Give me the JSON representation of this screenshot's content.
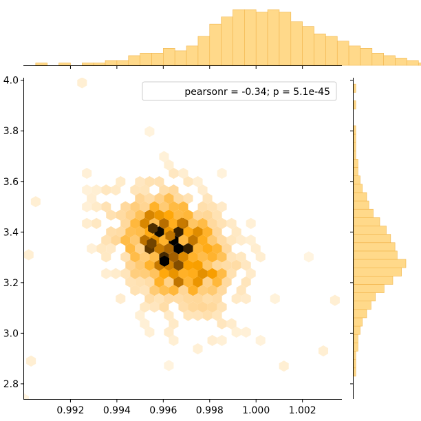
{
  "chart_data": {
    "type": "hexbin-jointplot",
    "title": "",
    "xlabel": "",
    "ylabel": "",
    "legend": {
      "text": "pearsonr = -0.34; p = 5.1e-45",
      "placement": "top-right"
    },
    "colors": {
      "hex_low": "#fff3df",
      "hex_mid": "#ffa000",
      "hex_high": "#000000",
      "hist_fill": "#ffd98a",
      "hist_edge": "#f1b44a"
    },
    "xlim": [
      0.99,
      1.0037
    ],
    "ylim": [
      2.74,
      4.01
    ],
    "x_ticks": [
      {
        "value": 0.992,
        "label": "0.992"
      },
      {
        "value": 0.994,
        "label": "0.994"
      },
      {
        "value": 0.996,
        "label": "0.996"
      },
      {
        "value": 0.998,
        "label": "0.998"
      },
      {
        "value": 1.0,
        "label": "1.000"
      },
      {
        "value": 1.002,
        "label": "1.002"
      }
    ],
    "y_ticks": [
      {
        "value": 2.8,
        "label": "2.8"
      },
      {
        "value": 3.0,
        "label": "3.0"
      },
      {
        "value": 3.2,
        "label": "3.2"
      },
      {
        "value": 3.4,
        "label": "3.4"
      },
      {
        "value": 3.6,
        "label": "3.6"
      },
      {
        "value": 3.8,
        "label": "3.8"
      },
      {
        "value": 4.0,
        "label": "4.0"
      }
    ],
    "hexbin": {
      "density_center": {
        "x": 0.99645,
        "y": 3.33
      },
      "sigma_x": 0.00165,
      "sigma_y": 0.16,
      "correlation": -0.34,
      "sparse_outliers": [
        {
          "x": 0.9925,
          "y": 3.99
        },
        {
          "x": 0.9905,
          "y": 3.52
        },
        {
          "x": 0.9902,
          "y": 3.31
        },
        {
          "x": 0.9903,
          "y": 2.89
        },
        {
          "x": 1.0029,
          "y": 2.93
        },
        {
          "x": 1.0034,
          "y": 3.13
        },
        {
          "x": 1.0012,
          "y": 2.87
        }
      ]
    },
    "x_marginal": {
      "bin_edges_start": 0.9905,
      "bin_width": 0.0005,
      "counts": [
        1,
        0,
        1,
        0,
        1,
        1,
        2,
        2,
        4,
        5,
        5,
        7,
        6,
        8,
        12,
        17,
        20,
        23,
        23,
        22,
        23,
        22,
        18,
        16,
        13,
        12,
        10,
        8,
        7,
        5,
        4,
        3,
        2,
        1,
        1,
        1
      ]
    },
    "y_marginal": {
      "bin_edges_start": 2.83,
      "bin_width": 0.033,
      "counts": [
        1,
        1,
        1,
        2,
        2,
        3,
        4,
        6,
        8,
        10,
        14,
        18,
        22,
        24,
        20,
        19,
        17,
        15,
        12,
        9,
        7,
        6,
        4,
        3,
        2,
        2,
        1,
        1,
        1,
        1,
        0,
        0,
        1,
        0,
        1,
        0,
        0,
        0
      ]
    }
  }
}
